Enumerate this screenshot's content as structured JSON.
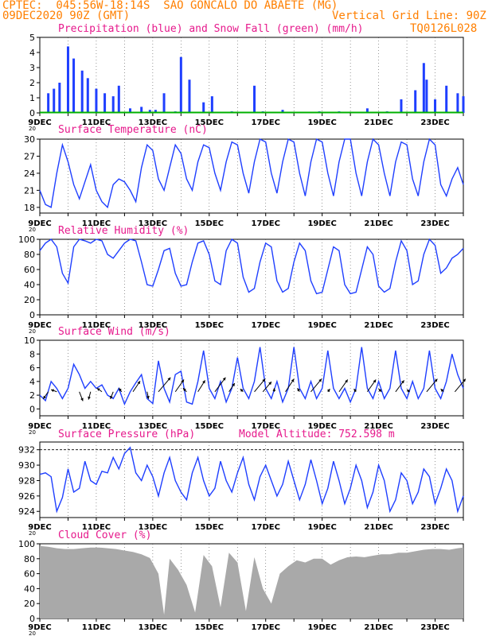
{
  "header": {
    "line1": "CPTEC:  045:56W-18:14S  SAO GONCALO DO ABAETE (MG)",
    "line2_left": "09DEC2020 90Z (GMT)",
    "line2_right": "Vertical Grid Line: 90Z",
    "code": "TQ0126L028"
  },
  "colors": {
    "header": "#ff7f00",
    "title": "#e6198c",
    "line": "#1f3fff",
    "cloud": "#a9a9a9",
    "snow": "#00b000"
  },
  "x_axis": {
    "day_ticks": [
      "9DEC",
      "11DEC",
      "13DEC",
      "15DEC",
      "17DEC",
      "19DEC",
      "21DEC",
      "23DEC"
    ],
    "year_fragment": "20"
  },
  "panels": {
    "precip": {
      "title": "Precipitation (blue) and Snow Fall (green) (mm/h)"
    },
    "temp": {
      "title": "Surface Temperature (nC)"
    },
    "rh": {
      "title": "Relative Humidity (%)"
    },
    "wind": {
      "title": "Surface Wind (m/s)"
    },
    "pres": {
      "title": "Surface Pressure (hPa)",
      "altitude": "Model Altitude: 752.598 m"
    },
    "cloud": {
      "title": "Cloud Cover (%)"
    }
  },
  "chart_data": [
    {
      "type": "bar",
      "id": "precip",
      "title": "Precipitation (blue) and Snow Fall (green) (mm/h)",
      "x_start": "9DEC",
      "x_end": "24DEC",
      "ylim": [
        0,
        5
      ],
      "yticks": [
        0,
        1,
        2,
        3,
        4,
        5
      ],
      "days": [
        9.3,
        9.5,
        9.7,
        10.0,
        10.2,
        10.5,
        10.7,
        11.0,
        11.3,
        11.6,
        11.8,
        12.2,
        12.6,
        12.9,
        13.1,
        13.4,
        13.8,
        14.0,
        14.3,
        14.8,
        15.1,
        15.8,
        16.6,
        16.9,
        17.6,
        18.9,
        19.6,
        20.6,
        21.3,
        21.8,
        22.3,
        22.6,
        22.7,
        23.0,
        23.4,
        23.8,
        24.0
      ],
      "values": [
        1.3,
        1.6,
        2.0,
        4.4,
        3.6,
        2.8,
        2.3,
        1.6,
        1.3,
        1.1,
        1.8,
        0.3,
        0.4,
        0.2,
        0.2,
        1.3,
        0.1,
        3.7,
        2.2,
        0.7,
        1.1,
        0.1,
        1.8,
        0.1,
        0.2,
        0.1,
        0.1,
        0.3,
        0.1,
        0.9,
        1.5,
        3.3,
        2.2,
        0.9,
        1.8,
        1.3,
        1.1
      ],
      "snow": 0.0
    },
    {
      "type": "line",
      "id": "temp",
      "title": "Surface Temperature (nC)",
      "ylim": [
        17,
        30
      ],
      "yticks": [
        18,
        21,
        24,
        27,
        30
      ],
      "days": [
        9.0,
        9.2,
        9.4,
        9.6,
        9.8,
        10.0,
        10.2,
        10.4,
        10.6,
        10.8,
        11.0,
        11.2,
        11.4,
        11.6,
        11.8,
        12.0,
        12.2,
        12.4,
        12.6,
        12.8,
        13.0,
        13.2,
        13.4,
        13.6,
        13.8,
        14.0,
        14.2,
        14.4,
        14.6,
        14.8,
        15.0,
        15.2,
        15.4,
        15.6,
        15.8,
        16.0,
        16.2,
        16.4,
        16.6,
        16.8,
        17.0,
        17.2,
        17.4,
        17.6,
        17.8,
        18.0,
        18.2,
        18.4,
        18.6,
        18.8,
        19.0,
        19.2,
        19.4,
        19.6,
        19.8,
        20.0,
        20.2,
        20.4,
        20.6,
        20.8,
        21.0,
        21.2,
        21.4,
        21.6,
        21.8,
        22.0,
        22.2,
        22.4,
        22.6,
        22.8,
        23.0,
        23.2,
        23.4,
        23.6,
        23.8,
        24.0
      ],
      "values": [
        21,
        18.5,
        18,
        24,
        29,
        26,
        22,
        19.5,
        22.5,
        25.5,
        21,
        19,
        18,
        22,
        23,
        22.5,
        21,
        19,
        25,
        29,
        28,
        23,
        21,
        25,
        29,
        27.5,
        23,
        21,
        26,
        29,
        28.5,
        24,
        21,
        26,
        29.5,
        29,
        24,
        20.5,
        26,
        30,
        29.5,
        24,
        20.5,
        26,
        30,
        29.5,
        24,
        20,
        26,
        30,
        29.5,
        24,
        20,
        26,
        30,
        30,
        24,
        20,
        26,
        30,
        29,
        24,
        20,
        26,
        29.5,
        29,
        23,
        20,
        26,
        30,
        29,
        22,
        20,
        23,
        25,
        22
      ]
    },
    {
      "type": "line",
      "id": "rh",
      "title": "Relative Humidity (%)",
      "ylim": [
        0,
        100
      ],
      "yticks": [
        0,
        20,
        40,
        60,
        80,
        100
      ],
      "days": [
        9.0,
        9.2,
        9.4,
        9.6,
        9.8,
        10.0,
        10.2,
        10.4,
        10.6,
        10.8,
        11.0,
        11.2,
        11.4,
        11.6,
        11.8,
        12.0,
        12.2,
        12.4,
        12.6,
        12.8,
        13.0,
        13.2,
        13.4,
        13.6,
        13.8,
        14.0,
        14.2,
        14.4,
        14.6,
        14.8,
        15.0,
        15.2,
        15.4,
        15.6,
        15.8,
        16.0,
        16.2,
        16.4,
        16.6,
        16.8,
        17.0,
        17.2,
        17.4,
        17.6,
        17.8,
        18.0,
        18.2,
        18.4,
        18.6,
        18.8,
        19.0,
        19.2,
        19.4,
        19.6,
        19.8,
        20.0,
        20.2,
        20.4,
        20.6,
        20.8,
        21.0,
        21.2,
        21.4,
        21.6,
        21.8,
        22.0,
        22.2,
        22.4,
        22.6,
        22.8,
        23.0,
        23.2,
        23.4,
        23.6,
        23.8,
        24.0
      ],
      "values": [
        85,
        95,
        100,
        90,
        55,
        42,
        90,
        100,
        98,
        95,
        100,
        98,
        80,
        75,
        85,
        95,
        100,
        98,
        70,
        40,
        38,
        60,
        85,
        88,
        55,
        38,
        40,
        70,
        95,
        98,
        80,
        45,
        40,
        85,
        100,
        95,
        50,
        30,
        35,
        70,
        95,
        90,
        45,
        30,
        35,
        70,
        95,
        85,
        45,
        28,
        30,
        60,
        90,
        85,
        40,
        28,
        30,
        60,
        90,
        80,
        38,
        30,
        35,
        70,
        98,
        85,
        40,
        45,
        80,
        100,
        92,
        55,
        62,
        75,
        80,
        88
      ]
    },
    {
      "type": "line",
      "id": "wind",
      "title": "Surface Wind (m/s)",
      "ylim": [
        -1,
        10
      ],
      "yticks": [
        0,
        2,
        4,
        6,
        8,
        10
      ],
      "days": [
        9.0,
        9.2,
        9.4,
        9.6,
        9.8,
        10.0,
        10.2,
        10.4,
        10.6,
        10.8,
        11.0,
        11.2,
        11.4,
        11.6,
        11.8,
        12.0,
        12.2,
        12.4,
        12.6,
        12.8,
        13.0,
        13.2,
        13.4,
        13.6,
        13.8,
        14.0,
        14.2,
        14.4,
        14.6,
        14.8,
        15.0,
        15.2,
        15.4,
        15.6,
        15.8,
        16.0,
        16.2,
        16.4,
        16.6,
        16.8,
        17.0,
        17.2,
        17.4,
        17.6,
        17.8,
        18.0,
        18.2,
        18.4,
        18.6,
        18.8,
        19.0,
        19.2,
        19.4,
        19.6,
        19.8,
        20.0,
        20.2,
        20.4,
        20.6,
        20.8,
        21.0,
        21.2,
        21.4,
        21.6,
        21.8,
        22.0,
        22.2,
        22.4,
        22.6,
        22.8,
        23.0,
        23.2,
        23.4,
        23.6,
        23.8,
        24.0
      ],
      "values": [
        2,
        1.2,
        4,
        3,
        1.5,
        3,
        6.5,
        5,
        3,
        4,
        3,
        3.5,
        2,
        1.5,
        3,
        0.7,
        2.5,
        3.8,
        5,
        1.5,
        0.8,
        7,
        3,
        1,
        5,
        5.5,
        1,
        0.7,
        4,
        8.5,
        3,
        1.5,
        4,
        1,
        3,
        7.5,
        3,
        1.5,
        4,
        9,
        3,
        1.5,
        4,
        1,
        3,
        9,
        3,
        1.5,
        4,
        1.5,
        3,
        8.5,
        3,
        1.5,
        3,
        1,
        3,
        9,
        3,
        1.5,
        4,
        1.5,
        3,
        8.5,
        3,
        1.5,
        4,
        1.5,
        3,
        8.5,
        3,
        1.5,
        4,
        8,
        5,
        3
      ],
      "barbs": [
        {
          "day": 9.3,
          "u": -0.7,
          "v": -1.0
        },
        {
          "day": 9.6,
          "u": -0.8,
          "v": 0.3
        },
        {
          "day": 10.4,
          "u": 0.5,
          "v": -1.3
        },
        {
          "day": 10.8,
          "u": -0.3,
          "v": -1.1
        },
        {
          "day": 11.2,
          "u": -0.7,
          "v": 0.5
        },
        {
          "day": 11.6,
          "u": -0.4,
          "v": -1.0
        },
        {
          "day": 11.9,
          "u": -0.4,
          "v": 0.5
        },
        {
          "day": 12.3,
          "u": 1.0,
          "v": 1.5
        },
        {
          "day": 12.8,
          "u": 0.2,
          "v": -1.0
        },
        {
          "day": 13.2,
          "u": 1.7,
          "v": 2.0
        },
        {
          "day": 13.8,
          "u": 1.2,
          "v": 1.7
        },
        {
          "day": 14.2,
          "u": -0.5,
          "v": 0.5
        },
        {
          "day": 14.6,
          "u": 1.0,
          "v": 1.6
        },
        {
          "day": 15.2,
          "u": 1.5,
          "v": 2.0
        },
        {
          "day": 15.7,
          "u": 0.8,
          "v": 1.2
        },
        {
          "day": 16.2,
          "u": -0.4,
          "v": 0.4
        },
        {
          "day": 16.6,
          "u": 1.5,
          "v": 1.8
        },
        {
          "day": 16.9,
          "u": 1.2,
          "v": 1.4
        },
        {
          "day": 17.3,
          "u": 0,
          "v": 0.5
        },
        {
          "day": 17.7,
          "u": 1.2,
          "v": 1.8
        },
        {
          "day": 18.2,
          "u": -0.3,
          "v": 0.5
        },
        {
          "day": 18.6,
          "u": 1.5,
          "v": 1.8
        },
        {
          "day": 19.2,
          "u": 0.3,
          "v": 0.4
        },
        {
          "day": 19.6,
          "u": 1.2,
          "v": 1.7
        },
        {
          "day": 20.2,
          "u": -0.3,
          "v": 0.4
        },
        {
          "day": 20.6,
          "u": 1.2,
          "v": 1.7
        },
        {
          "day": 21.1,
          "u": -0.4,
          "v": 0.4
        },
        {
          "day": 21.6,
          "u": 1.2,
          "v": 1.6
        },
        {
          "day": 22.1,
          "u": -0.4,
          "v": 0.3
        },
        {
          "day": 22.7,
          "u": 1.5,
          "v": 1.8
        },
        {
          "day": 23.3,
          "u": -0.4,
          "v": 0.4
        },
        {
          "day": 23.7,
          "u": 1.5,
          "v": 1.8
        }
      ]
    },
    {
      "type": "line",
      "id": "pres",
      "title": "Surface Pressure (hPa)",
      "ylim": [
        923.2,
        933
      ],
      "yticks": [
        924,
        926,
        928,
        930,
        932
      ],
      "days": [
        9.0,
        9.2,
        9.4,
        9.6,
        9.8,
        10.0,
        10.2,
        10.4,
        10.6,
        10.8,
        11.0,
        11.2,
        11.4,
        11.6,
        11.8,
        12.0,
        12.2,
        12.4,
        12.6,
        12.8,
        13.0,
        13.2,
        13.4,
        13.6,
        13.8,
        14.0,
        14.2,
        14.4,
        14.6,
        14.8,
        15.0,
        15.2,
        15.4,
        15.6,
        15.8,
        16.0,
        16.2,
        16.4,
        16.6,
        16.8,
        17.0,
        17.2,
        17.4,
        17.6,
        17.8,
        18.0,
        18.2,
        18.4,
        18.6,
        18.8,
        19.0,
        19.2,
        19.4,
        19.6,
        19.8,
        20.0,
        20.2,
        20.4,
        20.6,
        20.8,
        21.0,
        21.2,
        21.4,
        21.6,
        21.8,
        22.0,
        22.2,
        22.4,
        22.6,
        22.8,
        23.0,
        23.2,
        23.4,
        23.6,
        23.8,
        24.0
      ],
      "values": [
        928.8,
        929,
        928.5,
        924,
        925.8,
        929.5,
        926.5,
        927,
        930.5,
        928,
        927.5,
        929.2,
        929,
        931,
        929.5,
        931.5,
        932.3,
        929,
        928,
        930,
        928.5,
        926,
        929,
        931,
        928,
        926.5,
        925.5,
        929,
        931,
        928,
        926,
        927,
        930.5,
        928,
        926.5,
        929,
        931,
        927.5,
        925.5,
        928.5,
        930,
        928,
        926,
        927.5,
        930.5,
        928,
        925.5,
        927.5,
        930.7,
        928,
        925,
        927,
        930.5,
        928,
        925,
        927,
        930,
        928,
        924.5,
        926.5,
        930,
        928,
        924,
        925.5,
        929,
        928,
        925,
        926.5,
        929.5,
        928.5,
        925,
        927,
        929.5,
        928,
        924,
        926
      ]
    },
    {
      "type": "area",
      "id": "cloud",
      "title": "Cloud Cover (%)",
      "ylim": [
        0,
        100
      ],
      "yticks": [
        0,
        20,
        40,
        60,
        80,
        100
      ],
      "days": [
        9.0,
        9.3,
        9.6,
        9.9,
        10.2,
        10.5,
        10.8,
        11.1,
        11.4,
        11.7,
        12.0,
        12.3,
        12.6,
        12.9,
        13.2,
        13.4,
        13.6,
        13.9,
        14.2,
        14.5,
        14.8,
        15.1,
        15.4,
        15.7,
        16.0,
        16.3,
        16.6,
        16.9,
        17.2,
        17.5,
        17.8,
        18.1,
        18.4,
        18.7,
        19.0,
        19.3,
        19.6,
        19.9,
        20.2,
        20.5,
        20.8,
        21.1,
        21.4,
        21.7,
        22.0,
        22.3,
        22.6,
        22.9,
        23.2,
        23.5,
        23.8,
        24.0
      ],
      "values": [
        97,
        96,
        94,
        93,
        93,
        94,
        95,
        95,
        94,
        93,
        91,
        89,
        86,
        81,
        60,
        5,
        80,
        65,
        45,
        8,
        85,
        70,
        15,
        88,
        75,
        10,
        82,
        40,
        20,
        60,
        70,
        78,
        75,
        80,
        80,
        72,
        78,
        82,
        83,
        82,
        84,
        86,
        86,
        88,
        88,
        90,
        92,
        93,
        93,
        92,
        94,
        95
      ]
    }
  ]
}
